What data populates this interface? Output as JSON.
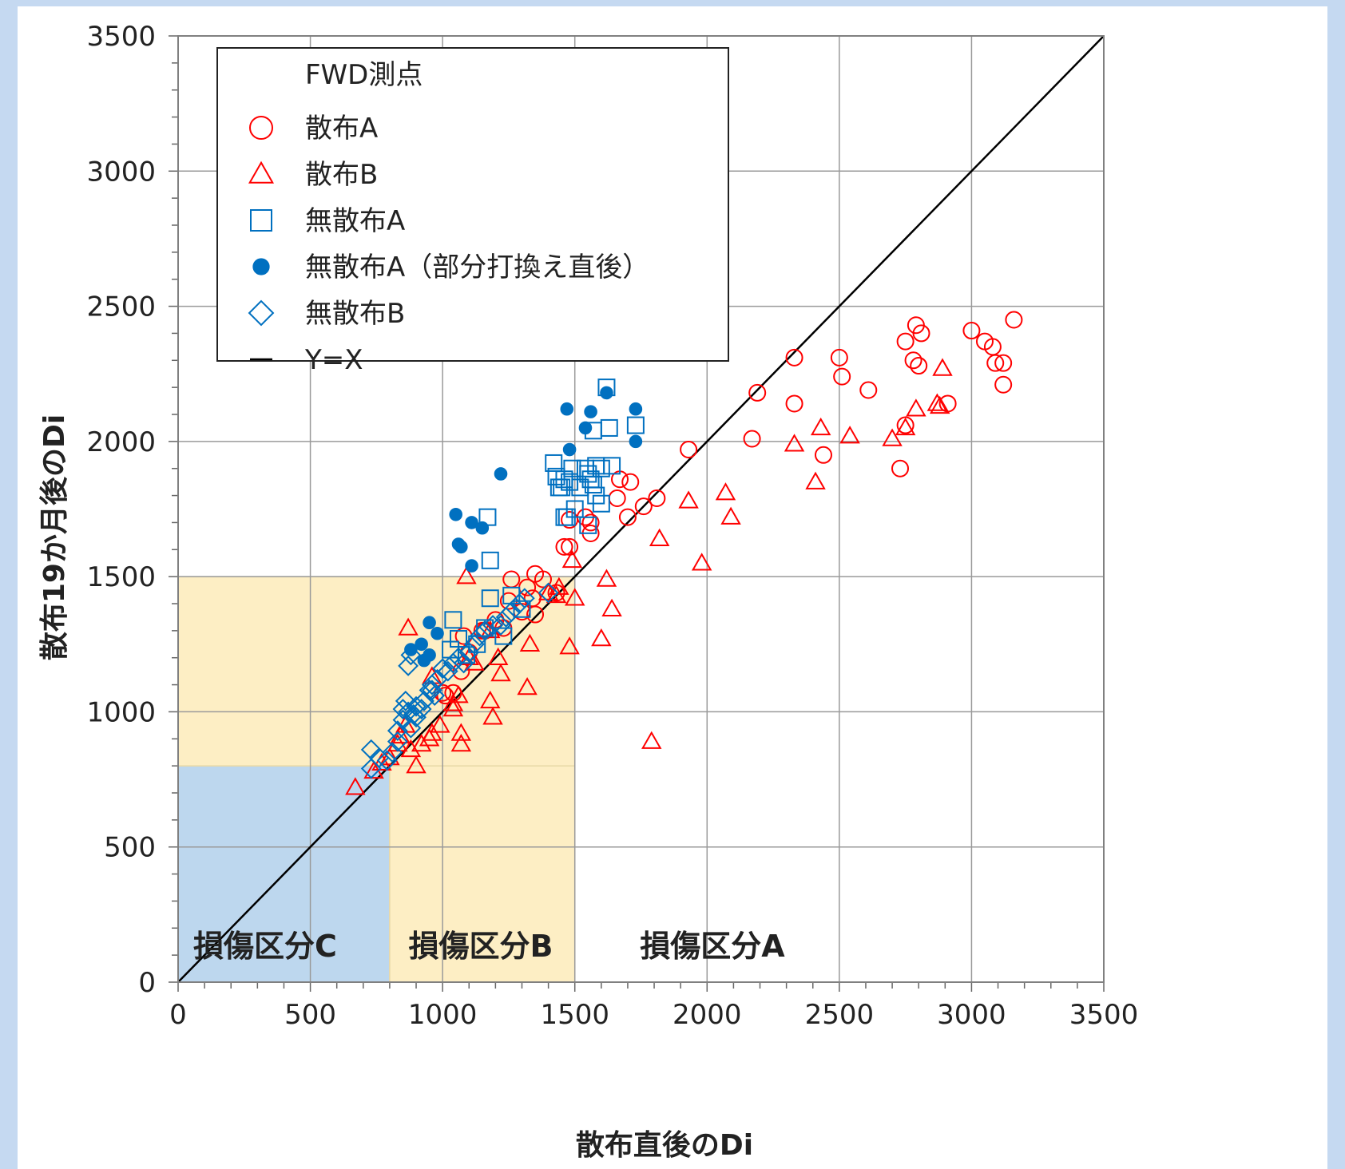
{
  "chart_data": {
    "type": "scatter",
    "xlabel": "散布直後のDi",
    "ylabel": "散布19か月後のDi",
    "xlim": [
      0,
      3500
    ],
    "ylim": [
      0,
      3500
    ],
    "xticks": [
      "0",
      "500",
      "1000",
      "1500",
      "2000",
      "2500",
      "3000",
      "3500"
    ],
    "yticks": [
      "0",
      "500",
      "1000",
      "1500",
      "2000",
      "2500",
      "3000",
      "3500"
    ],
    "grid": true,
    "legend": {
      "title": "FWD測点",
      "position": "top-left"
    },
    "regions": [
      {
        "label": "損傷区分C",
        "x": [
          0,
          800
        ],
        "y": [
          0,
          800
        ],
        "color": "#bdd7ee"
      },
      {
        "label": "損傷区分B",
        "x": [
          800,
          1500
        ],
        "y": [
          0,
          800
        ],
        "color": "#fdeec4"
      },
      {
        "label": "",
        "x": [
          0,
          1500
        ],
        "y": [
          800,
          1500
        ],
        "color": "#fdeec4"
      },
      {
        "label": "損傷区分A",
        "x": [
          1500,
          3500
        ],
        "y": [
          0,
          800
        ],
        "color": ""
      }
    ],
    "reference_line": {
      "name": "Y=X",
      "x": [
        0,
        3500
      ],
      "y": [
        0,
        3500
      ],
      "color": "#000000"
    },
    "series": [
      {
        "name": "散布A",
        "marker": "circle-open",
        "color": "#ff0000",
        "points": [
          [
            1080,
            1280
          ],
          [
            1260,
            1490
          ],
          [
            1320,
            1460
          ],
          [
            1350,
            1510
          ],
          [
            1380,
            1490
          ],
          [
            1430,
            1440
          ],
          [
            1250,
            1410
          ],
          [
            1300,
            1370
          ],
          [
            1350,
            1360
          ],
          [
            1340,
            1420
          ],
          [
            1460,
            1610
          ],
          [
            1480,
            1610
          ],
          [
            1480,
            1710
          ],
          [
            1540,
            1720
          ],
          [
            1560,
            1700
          ],
          [
            1560,
            1660
          ],
          [
            1660,
            1790
          ],
          [
            1670,
            1860
          ],
          [
            1710,
            1850
          ],
          [
            1700,
            1720
          ],
          [
            1760,
            1760
          ],
          [
            1810,
            1790
          ],
          [
            1930,
            1970
          ],
          [
            2170,
            2010
          ],
          [
            2190,
            2180
          ],
          [
            2330,
            2140
          ],
          [
            2330,
            2310
          ],
          [
            2440,
            1950
          ],
          [
            2500,
            2310
          ],
          [
            2510,
            2240
          ],
          [
            2610,
            2190
          ],
          [
            2730,
            1900
          ],
          [
            2750,
            2370
          ],
          [
            2750,
            2060
          ],
          [
            2780,
            2300
          ],
          [
            2790,
            2430
          ],
          [
            2800,
            2280
          ],
          [
            2810,
            2400
          ],
          [
            2910,
            2140
          ],
          [
            3000,
            2410
          ],
          [
            3050,
            2370
          ],
          [
            3080,
            2350
          ],
          [
            3090,
            2290
          ],
          [
            3120,
            2290
          ],
          [
            3120,
            2210
          ],
          [
            3160,
            2450
          ],
          [
            1200,
            1340
          ],
          [
            1150,
            1300
          ],
          [
            1070,
            1150
          ],
          [
            1040,
            1070
          ],
          [
            1000,
            1070
          ],
          [
            1010,
            1060
          ],
          [
            1100,
            1220
          ],
          [
            1160,
            1300
          ],
          [
            1230,
            1310
          ]
        ]
      },
      {
        "name": "散布B",
        "marker": "triangle-open",
        "color": "#ff0000",
        "points": [
          [
            670,
            720
          ],
          [
            740,
            780
          ],
          [
            770,
            810
          ],
          [
            800,
            830
          ],
          [
            830,
            880
          ],
          [
            840,
            910
          ],
          [
            860,
            950
          ],
          [
            880,
            860
          ],
          [
            900,
            800
          ],
          [
            920,
            880
          ],
          [
            950,
            900
          ],
          [
            960,
            920
          ],
          [
            990,
            950
          ],
          [
            1040,
            1030
          ],
          [
            1070,
            880
          ],
          [
            1070,
            920
          ],
          [
            1060,
            1060
          ],
          [
            1090,
            1500
          ],
          [
            1100,
            1200
          ],
          [
            1120,
            1180
          ],
          [
            1180,
            1040
          ],
          [
            1190,
            980
          ],
          [
            1210,
            1200
          ],
          [
            1220,
            1140
          ],
          [
            1320,
            1090
          ],
          [
            1330,
            1250
          ],
          [
            1430,
            1430
          ],
          [
            1480,
            1240
          ],
          [
            1500,
            1420
          ],
          [
            1490,
            1560
          ],
          [
            1600,
            1270
          ],
          [
            1620,
            1490
          ],
          [
            1640,
            1380
          ],
          [
            1820,
            1640
          ],
          [
            1790,
            890
          ],
          [
            1930,
            1780
          ],
          [
            1980,
            1550
          ],
          [
            2070,
            1810
          ],
          [
            2090,
            1720
          ],
          [
            2330,
            1990
          ],
          [
            2410,
            1850
          ],
          [
            2430,
            2050
          ],
          [
            2540,
            2020
          ],
          [
            2700,
            2010
          ],
          [
            2750,
            2050
          ],
          [
            2790,
            2120
          ],
          [
            2870,
            2140
          ],
          [
            2880,
            2130
          ],
          [
            2890,
            2270
          ],
          [
            870,
            1310
          ],
          [
            960,
            1130
          ],
          [
            1040,
            1010
          ],
          [
            1180,
            1300
          ],
          [
            1400,
            1440
          ],
          [
            1440,
            1460
          ]
        ]
      },
      {
        "name": "無散布A",
        "marker": "square-open",
        "color": "#0070c0",
        "points": [
          [
            1170,
            1720
          ],
          [
            1180,
            1560
          ],
          [
            1180,
            1420
          ],
          [
            1040,
            1340
          ],
          [
            1060,
            1270
          ],
          [
            1030,
            1230
          ],
          [
            1090,
            1210
          ],
          [
            1130,
            1250
          ],
          [
            1160,
            1310
          ],
          [
            1420,
            1920
          ],
          [
            1430,
            1870
          ],
          [
            1450,
            1830
          ],
          [
            1460,
            1860
          ],
          [
            1470,
            1720
          ],
          [
            1490,
            1900
          ],
          [
            1500,
            1750
          ],
          [
            1520,
            1830
          ],
          [
            1540,
            1900
          ],
          [
            1550,
            1880
          ],
          [
            1560,
            1860
          ],
          [
            1570,
            2040
          ],
          [
            1570,
            1840
          ],
          [
            1580,
            1800
          ],
          [
            1580,
            1910
          ],
          [
            1600,
            1770
          ],
          [
            1600,
            1900
          ],
          [
            1620,
            2200
          ],
          [
            1630,
            2050
          ],
          [
            1640,
            1910
          ],
          [
            1730,
            2060
          ],
          [
            1480,
            1850
          ],
          [
            1440,
            1830
          ],
          [
            1460,
            1720
          ],
          [
            1550,
            1690
          ],
          [
            1230,
            1280
          ],
          [
            1300,
            1380
          ],
          [
            1260,
            1430
          ]
        ]
      },
      {
        "name": "無散布A（部分打換え直後）",
        "marker": "circle-filled",
        "color": "#0070c0",
        "points": [
          [
            1050,
            1730
          ],
          [
            1060,
            1620
          ],
          [
            1070,
            1610
          ],
          [
            1110,
            1700
          ],
          [
            1150,
            1680
          ],
          [
            1110,
            1540
          ],
          [
            1220,
            1880
          ],
          [
            1470,
            2120
          ],
          [
            1480,
            1970
          ],
          [
            1540,
            2050
          ],
          [
            1560,
            2110
          ],
          [
            1620,
            2180
          ],
          [
            1730,
            2120
          ],
          [
            1730,
            2000
          ],
          [
            880,
            1230
          ],
          [
            920,
            1250
          ],
          [
            930,
            1190
          ],
          [
            950,
            1210
          ],
          [
            950,
            1330
          ],
          [
            980,
            1290
          ]
        ]
      },
      {
        "name": "無散布B",
        "marker": "diamond-open",
        "color": "#0070c0",
        "points": [
          [
            730,
            790
          ],
          [
            730,
            860
          ],
          [
            760,
            830
          ],
          [
            790,
            820
          ],
          [
            810,
            850
          ],
          [
            830,
            890
          ],
          [
            830,
            930
          ],
          [
            850,
            970
          ],
          [
            850,
            1010
          ],
          [
            860,
            1040
          ],
          [
            870,
            1000
          ],
          [
            880,
            940
          ],
          [
            890,
            990
          ],
          [
            900,
            980
          ],
          [
            900,
            1020
          ],
          [
            920,
            1010
          ],
          [
            930,
            1040
          ],
          [
            950,
            1080
          ],
          [
            960,
            1100
          ],
          [
            970,
            1060
          ],
          [
            980,
            1120
          ],
          [
            1000,
            1160
          ],
          [
            1020,
            1150
          ],
          [
            1040,
            1180
          ],
          [
            1060,
            1200
          ],
          [
            1080,
            1180
          ],
          [
            1100,
            1220
          ],
          [
            1120,
            1250
          ],
          [
            1140,
            1280
          ],
          [
            1160,
            1300
          ],
          [
            1190,
            1320
          ],
          [
            1220,
            1320
          ],
          [
            1240,
            1350
          ],
          [
            1260,
            1370
          ],
          [
            1290,
            1400
          ],
          [
            1310,
            1420
          ],
          [
            1400,
            1440
          ],
          [
            870,
            1170
          ],
          [
            880,
            1210
          ],
          [
            960,
            1080
          ]
        ]
      }
    ],
    "reference_label": "Y=X"
  },
  "legend_items": [
    {
      "label": "散布A",
      "icon": "circle-open",
      "color": "#ff0000"
    },
    {
      "label": "散布B",
      "icon": "triangle-open",
      "color": "#ff0000"
    },
    {
      "label": "無散布A",
      "icon": "square-open",
      "color": "#0070c0"
    },
    {
      "label": "無散布A（部分打換え直後）",
      "icon": "circle-filled",
      "color": "#0070c0"
    },
    {
      "label": "無散布B",
      "icon": "diamond-open",
      "color": "#0070c0"
    },
    {
      "label": "Y=X",
      "icon": "line",
      "color": "#000000"
    }
  ]
}
